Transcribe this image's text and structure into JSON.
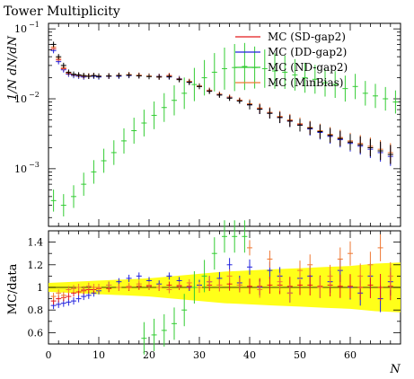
{
  "chart_data": [
    {
      "type": "scatter",
      "panel": "main",
      "title": "Tower Multiplicity",
      "ylabel": "1/N dN/dN",
      "xlabel": "",
      "xlim": [
        0,
        70
      ],
      "ylim": [
        0.00015,
        0.12
      ],
      "yscale": "log",
      "xticks": [
        0,
        10,
        20,
        30,
        40,
        50,
        60
      ],
      "yticks": [
        0.001,
        0.01,
        0.1
      ],
      "ytick_labels": [
        "10",
        "10",
        "10"
      ],
      "ytick_exponents": [
        "−3",
        "−2",
        "−1"
      ],
      "legend_position": "top-right",
      "series": [
        {
          "name": "MC (SD-gap2)",
          "color": "#e41a1c",
          "x": [
            1,
            2,
            3,
            4,
            5,
            6,
            7,
            8,
            9,
            10,
            12,
            14,
            16,
            18,
            20,
            22,
            24,
            26,
            28,
            30,
            32,
            34,
            36,
            38,
            40,
            42,
            44,
            46,
            48,
            50,
            52,
            54,
            56,
            58,
            60,
            62,
            64,
            66,
            68
          ],
          "y": [
            0.052,
            0.036,
            0.027,
            0.023,
            0.022,
            0.0215,
            0.021,
            0.021,
            0.0215,
            0.021,
            0.021,
            0.0215,
            0.022,
            0.0215,
            0.021,
            0.0205,
            0.0215,
            0.019,
            0.0175,
            0.015,
            0.013,
            0.0115,
            0.0105,
            0.0095,
            0.0083,
            0.0072,
            0.0063,
            0.0055,
            0.0049,
            0.0043,
            0.0038,
            0.0034,
            0.003,
            0.0027,
            0.0024,
            0.0022,
            0.002,
            0.0018,
            0.0016
          ]
        },
        {
          "name": "MC (DD-gap2)",
          "color": "#2222dd",
          "x": [
            1,
            2,
            3,
            4,
            5,
            6,
            7,
            8,
            9,
            10,
            12,
            14,
            16,
            18,
            20,
            22,
            24,
            26,
            28,
            30,
            32,
            34,
            36,
            38,
            40,
            42,
            44,
            46,
            48,
            50,
            52,
            54,
            56,
            58,
            60,
            62,
            64,
            66,
            68
          ],
          "y": [
            0.049,
            0.034,
            0.026,
            0.0225,
            0.0215,
            0.021,
            0.0205,
            0.021,
            0.021,
            0.0205,
            0.021,
            0.021,
            0.0215,
            0.0215,
            0.021,
            0.021,
            0.0205,
            0.0195,
            0.0175,
            0.0152,
            0.0132,
            0.0115,
            0.0104,
            0.0094,
            0.0082,
            0.0071,
            0.0062,
            0.0054,
            0.0048,
            0.0042,
            0.0037,
            0.0033,
            0.0029,
            0.0026,
            0.0023,
            0.0021,
            0.0019,
            0.0017,
            0.0015
          ]
        },
        {
          "name": "MC (ND-gap2)",
          "color": "#33cc33",
          "x": [
            1,
            3,
            5,
            7,
            9,
            11,
            13,
            15,
            17,
            19,
            21,
            23,
            25,
            27,
            29,
            31,
            33,
            35,
            37,
            39,
            41,
            43,
            45,
            47,
            49,
            51,
            53,
            55,
            57,
            59,
            61,
            63,
            65,
            67,
            69
          ],
          "y": [
            0.00035,
            0.0003,
            0.0004,
            0.0006,
            0.0009,
            0.0013,
            0.0017,
            0.0025,
            0.0035,
            0.0045,
            0.0058,
            0.0075,
            0.0095,
            0.012,
            0.016,
            0.02,
            0.024,
            0.027,
            0.028,
            0.029,
            0.028,
            0.027,
            0.025,
            0.024,
            0.022,
            0.02,
            0.019,
            0.017,
            0.016,
            0.014,
            0.015,
            0.012,
            0.011,
            0.01,
            0.009
          ]
        },
        {
          "name": "MC (MinBias)",
          "color": "#ee7733",
          "x": [
            1,
            2,
            3,
            4,
            5,
            6,
            7,
            8,
            9,
            10,
            12,
            14,
            16,
            18,
            20,
            22,
            24,
            26,
            28,
            30,
            32,
            34,
            36,
            38,
            40,
            42,
            44,
            46,
            48,
            50,
            52,
            54,
            56,
            58,
            60,
            62,
            64,
            66,
            68
          ],
          "y": [
            0.055,
            0.038,
            0.028,
            0.0235,
            0.0222,
            0.0216,
            0.0212,
            0.0213,
            0.0216,
            0.0212,
            0.0213,
            0.0217,
            0.0222,
            0.0218,
            0.0212,
            0.0208,
            0.0212,
            0.0192,
            0.0178,
            0.0153,
            0.0133,
            0.0117,
            0.0106,
            0.0096,
            0.0085,
            0.0074,
            0.0064,
            0.0056,
            0.005,
            0.0044,
            0.0039,
            0.0035,
            0.0031,
            0.0028,
            0.0025,
            0.0023,
            0.0021,
            0.0019,
            0.0017
          ]
        },
        {
          "name": "",
          "color": "#000000",
          "x": [
            1,
            2,
            3,
            4,
            5,
            6,
            7,
            8,
            9,
            10,
            12,
            14,
            16,
            18,
            20,
            22,
            24,
            26,
            28,
            30,
            32,
            34,
            36,
            38,
            40,
            42,
            44,
            46,
            48,
            50,
            52,
            54,
            56,
            58,
            60,
            62,
            64,
            66,
            68
          ],
          "y": [
            0.06,
            0.04,
            0.03,
            0.024,
            0.0225,
            0.022,
            0.0215,
            0.021,
            0.0215,
            0.021,
            0.0212,
            0.0215,
            0.0218,
            0.0213,
            0.0208,
            0.0205,
            0.0208,
            0.0188,
            0.0172,
            0.015,
            0.0128,
            0.0113,
            0.0102,
            0.0093,
            0.0082,
            0.0071,
            0.0062,
            0.0054,
            0.0048,
            0.0042,
            0.0038,
            0.0034,
            0.003,
            0.0027,
            0.0024,
            0.0022,
            0.002,
            0.0018,
            0.0016
          ]
        }
      ]
    },
    {
      "type": "scatter",
      "panel": "ratio",
      "ylabel": "MC/data",
      "xlabel": "N",
      "xlim": [
        0,
        70
      ],
      "ylim": [
        0.5,
        1.5
      ],
      "xticks": [
        0,
        10,
        20,
        30,
        40,
        50,
        60
      ],
      "yticks": [
        0.6,
        0.8,
        1,
        1.2,
        1.4
      ],
      "ytick_labels": [
        "0.6",
        "0.8",
        "1",
        "1.2",
        "1.4"
      ],
      "band": {
        "color": "#ffff00",
        "x": [
          0,
          5,
          10,
          15,
          20,
          25,
          30,
          35,
          40,
          45,
          50,
          55,
          60,
          65,
          70
        ],
        "lo": [
          0.96,
          0.95,
          0.94,
          0.93,
          0.92,
          0.9,
          0.88,
          0.86,
          0.85,
          0.84,
          0.83,
          0.82,
          0.81,
          0.79,
          0.78
        ],
        "hi": [
          1.04,
          1.05,
          1.06,
          1.07,
          1.08,
          1.1,
          1.12,
          1.14,
          1.15,
          1.16,
          1.17,
          1.18,
          1.19,
          1.21,
          1.22
        ]
      },
      "series": [
        {
          "name": "MC (DD-gap2)",
          "color": "#2222dd",
          "x": [
            1,
            2,
            3,
            4,
            5,
            6,
            7,
            8,
            9,
            10,
            12,
            14,
            16,
            18,
            20,
            22,
            24,
            26,
            28,
            30,
            32,
            34,
            36,
            38,
            40,
            42,
            44,
            46,
            48,
            50,
            52,
            54,
            56,
            58,
            60,
            62,
            64,
            66,
            68
          ],
          "y": [
            0.84,
            0.85,
            0.86,
            0.87,
            0.88,
            0.9,
            0.92,
            0.93,
            0.95,
            0.97,
            1.02,
            1.05,
            1.08,
            1.1,
            1.06,
            1.03,
            1.1,
            1.06,
            1.0,
            1.02,
            1.05,
            1.08,
            1.2,
            1.04,
            1.18,
            1.0,
            1.15,
            1.1,
            0.95,
            1.08,
            1.1,
            1.0,
            1.05,
            1.15,
            1.0,
            0.95,
            1.1,
            0.9,
            1.05
          ]
        },
        {
          "name": "MC (SD-gap2)",
          "color": "#e41a1c",
          "x": [
            1,
            2,
            3,
            4,
            5,
            6,
            7,
            8,
            9,
            10,
            12,
            14,
            16,
            18,
            20,
            22,
            24,
            26,
            28,
            30,
            32,
            34,
            36,
            38,
            40,
            42,
            44,
            46,
            48,
            50,
            52,
            54,
            56,
            58,
            60,
            62,
            64,
            66,
            68
          ],
          "y": [
            0.88,
            0.9,
            0.91,
            0.92,
            0.95,
            0.96,
            0.97,
            0.98,
            0.98,
            0.99,
            0.99,
            1.0,
            1.0,
            1.01,
            1.01,
            1.0,
            1.02,
            1.01,
            1.01,
            1.0,
            1.02,
            1.02,
            1.03,
            1.02,
            1.01,
            1.01,
            1.02,
            1.02,
            1.01,
            1.02,
            1.02,
            1.01,
            1.02,
            1.01,
            1.01,
            1.0,
            1.02,
            1.0,
            1.01
          ]
        },
        {
          "name": "MC (MinBias)",
          "color": "#ee7733",
          "x": [
            1,
            2,
            3,
            4,
            5,
            6,
            7,
            8,
            9,
            10,
            12,
            14,
            16,
            18,
            20,
            22,
            24,
            26,
            28,
            30,
            32,
            34,
            36,
            38,
            40,
            42,
            44,
            46,
            48,
            50,
            52,
            54,
            56,
            58,
            60,
            62,
            64,
            66,
            68
          ],
          "y": [
            0.92,
            0.95,
            0.93,
            0.98,
            0.99,
            1.0,
            0.98,
            1.01,
            1.0,
            1.0,
            1.02,
            1.0,
            1.01,
            1.03,
            1.02,
            1.0,
            0.98,
            1.02,
            1.04,
            1.0,
            1.05,
            1.02,
            1.1,
            1.02,
            1.35,
            0.98,
            1.25,
            1.05,
            0.95,
            1.15,
            1.2,
            1.0,
            1.1,
            1.25,
            1.3,
            1.1,
            1.2,
            1.35,
            1.1
          ]
        },
        {
          "name": "MC (ND-gap2)",
          "color": "#33cc33",
          "x": [
            19,
            21,
            23,
            25,
            27,
            29,
            31,
            33,
            35,
            37,
            39
          ],
          "y": [
            0.55,
            0.58,
            0.62,
            0.68,
            0.8,
            1.0,
            1.1,
            1.3,
            1.45,
            1.45,
            1.45
          ]
        }
      ]
    }
  ]
}
